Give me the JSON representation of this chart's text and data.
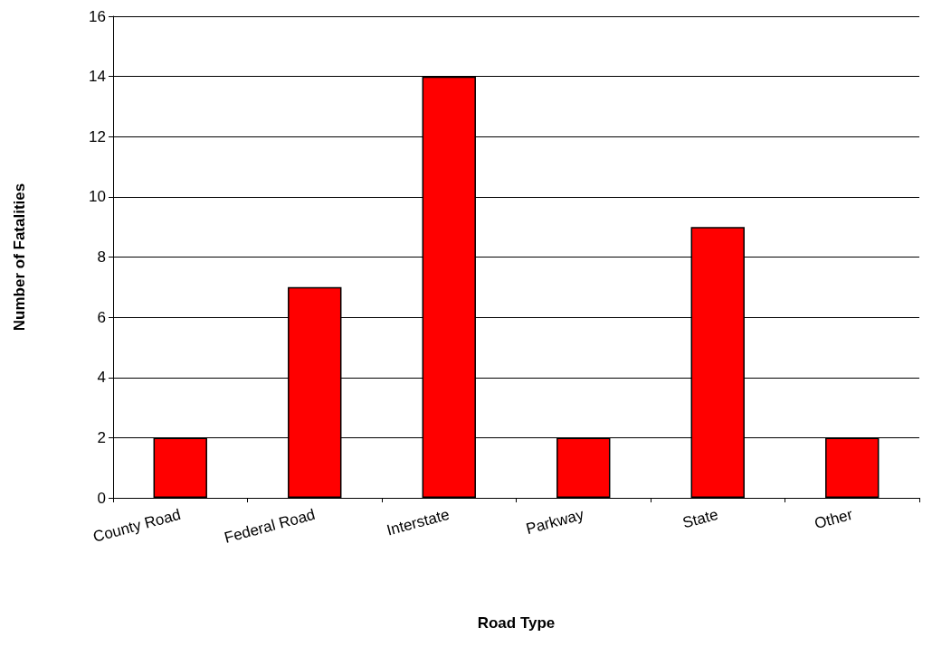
{
  "chart_data": {
    "type": "bar",
    "xlabel": "Road Type",
    "ylabel": "Number of Fatalities",
    "categories": [
      "County Road",
      "Federal Road",
      "Interstate",
      "Parkway",
      "State",
      "Other"
    ],
    "values": [
      2,
      7,
      14,
      2,
      9,
      2
    ],
    "color": "#ff0000",
    "ylim": [
      0,
      16
    ],
    "yticks": [
      0,
      2,
      4,
      6,
      8,
      10,
      12,
      14,
      16
    ],
    "grid": "y"
  }
}
